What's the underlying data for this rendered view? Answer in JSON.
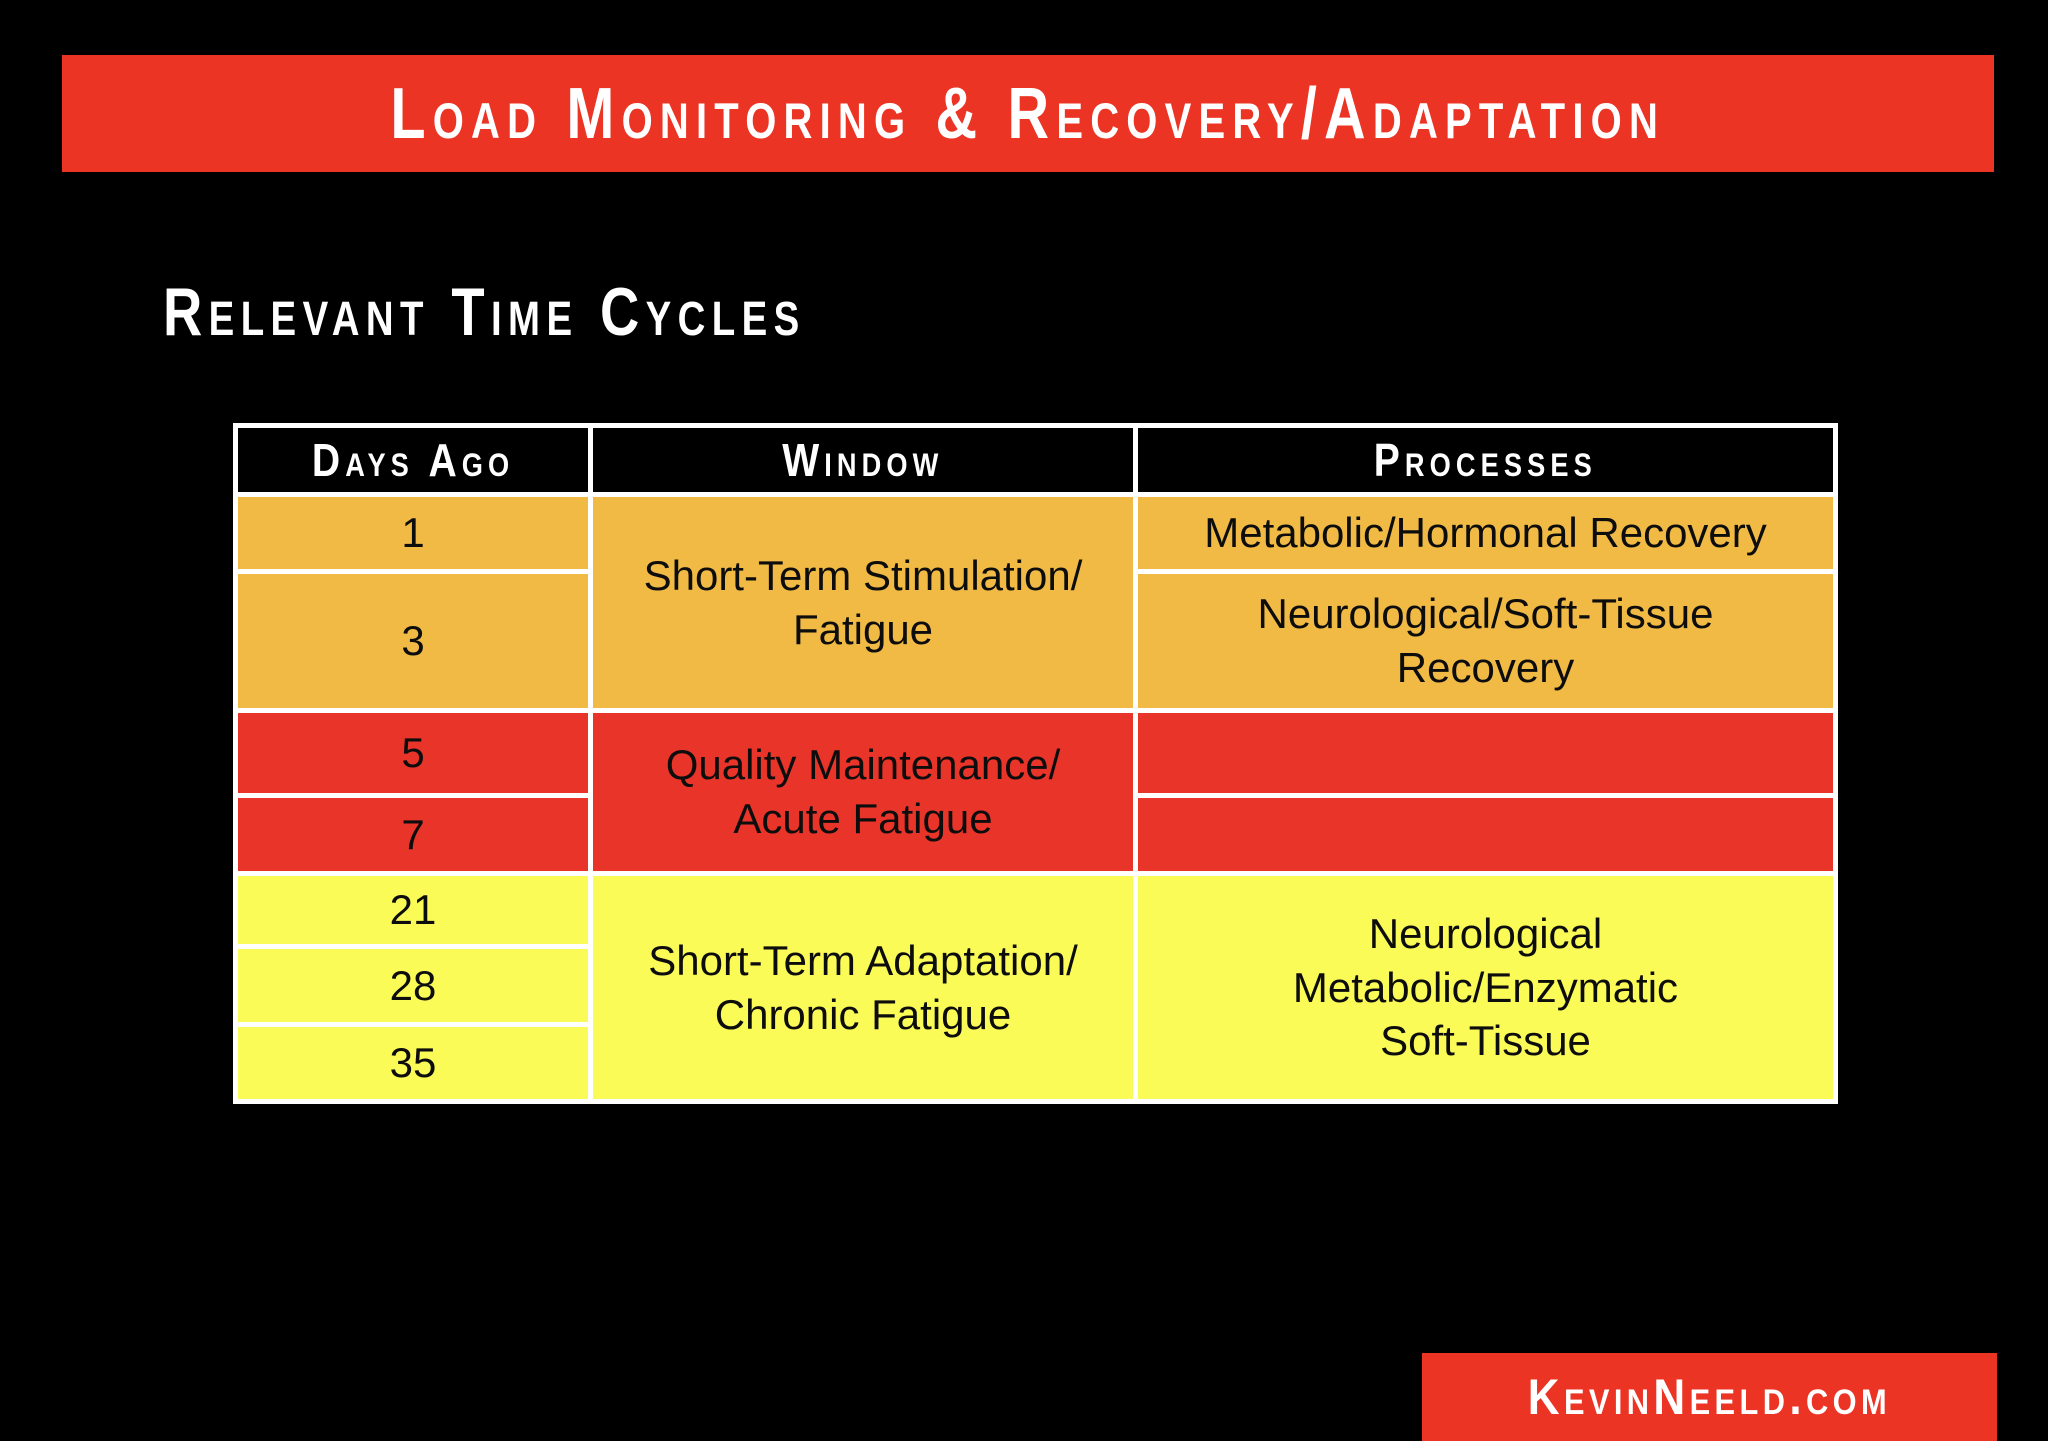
{
  "slide": {
    "title_banner": "Load Monitoring & Recovery/Adaptation",
    "heading": "Relevant Time Cycles",
    "footer": "KevinNeeld.com"
  },
  "colors": {
    "background": "#000000",
    "banner_red": "#EC3424",
    "header_black": "#000000",
    "grid_white": "#FFFFFF",
    "orange_row": "#F0BA45",
    "red_row": "#E9342A",
    "yellow_row": "#FBFB58"
  },
  "table": {
    "headers": {
      "days_ago": "Days Ago",
      "window": "Window",
      "processes": "Processes"
    },
    "orange_section": {
      "day_row1": "1",
      "day_row2": "3",
      "window": "Short-Term Stimulation/\nFatigue",
      "process_row1": "Metabolic/Hormonal Recovery",
      "process_row2": "Neurological/Soft-Tissue\nRecovery"
    },
    "red_section": {
      "day_row1": "5",
      "day_row2": "7",
      "window": "Quality Maintenance/\nAcute Fatigue",
      "process_row1": "",
      "process_row2": ""
    },
    "yellow_section": {
      "day_row1": "21",
      "day_row2": "28",
      "day_row3": "35",
      "window": "Short-Term Adaptation/\nChronic Fatigue",
      "processes": "Neurological\nMetabolic/Enzymatic\nSoft-Tissue"
    }
  }
}
